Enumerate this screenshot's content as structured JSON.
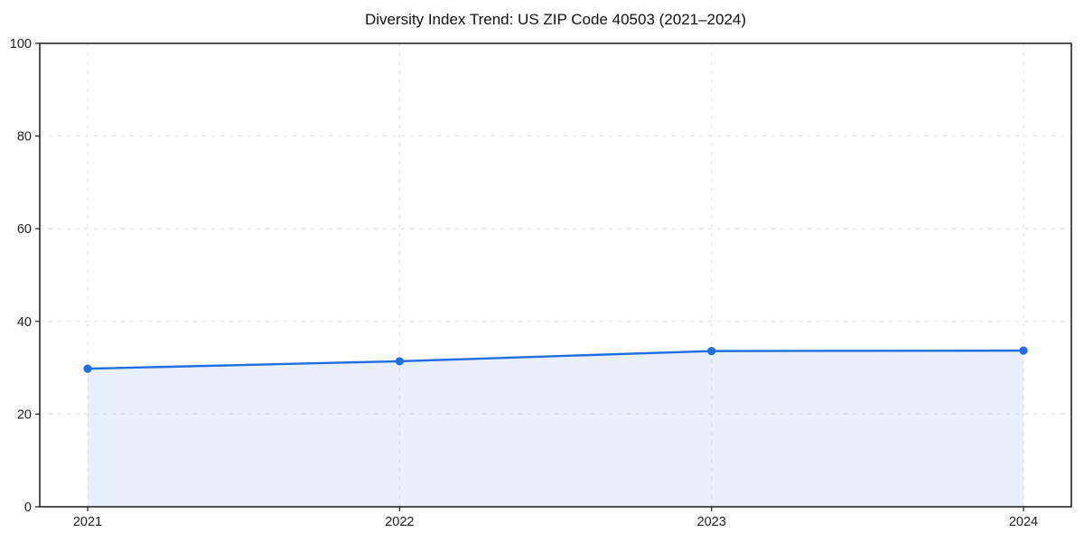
{
  "chart_data": {
    "type": "area",
    "title": "Diversity Index Trend: US ZIP Code 40503 (2021–2024)",
    "categories": [
      "2021",
      "2022",
      "2023",
      "2024"
    ],
    "values": [
      29.8,
      31.4,
      33.6,
      33.7
    ],
    "xlabel": "",
    "ylabel": "",
    "ylim": [
      0,
      100
    ],
    "yticks": [
      0,
      20,
      40,
      60,
      80,
      100
    ],
    "grid": "dashed",
    "legend": "none",
    "marker": "circle",
    "line_color": "#1f6fe0",
    "fill_color": "#1f6fe0",
    "fill_opacity": 0.1,
    "grid_color": "#e4e4e4",
    "spine_color": "#1a1a1a",
    "tick_label_color": "#1f1f1f",
    "title_color": "#111111",
    "background_color": "#ffffff"
  }
}
